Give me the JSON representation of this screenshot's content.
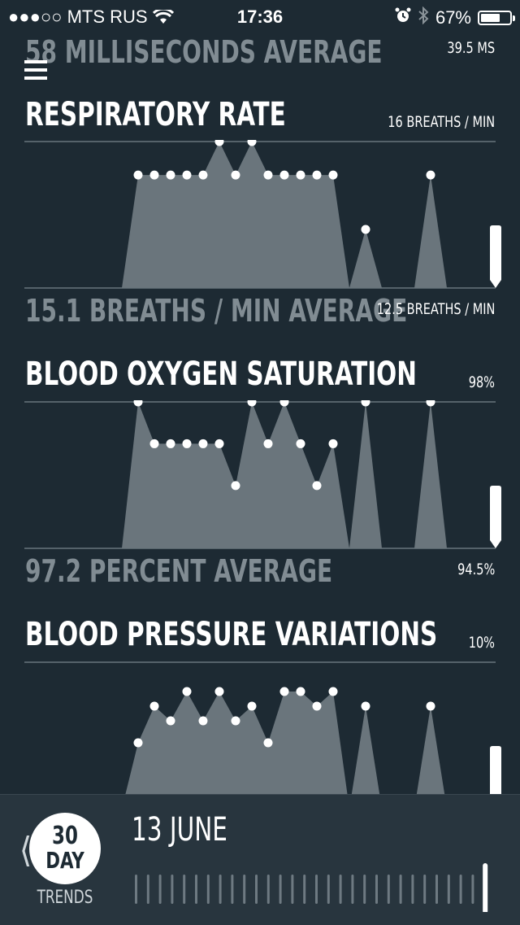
{
  "status_bar": {
    "signal": "●●●○○",
    "carrier": "MTS RUS",
    "time": "17:36",
    "battery": "67%",
    "battery_level": 0.67,
    "icons": [
      "wifi-icon",
      "alarm-icon",
      "bluetooth-icon",
      "battery-icon"
    ]
  },
  "colors": {
    "background": "#1d2a33",
    "area_fill": "#6a757c",
    "faded_text": "#818c93",
    "bottom_bar": "#28353e",
    "accent": "#ffffff"
  },
  "top_partial": {
    "average_label": "58 MILLISECONDS AVERAGE",
    "low_value": "39.5 MS"
  },
  "sections": [
    {
      "title": "RESPIRATORY RATE",
      "high_value": "16 BREATHS / MIN",
      "average_label": "15.1 BREATHS / MIN AVERAGE",
      "low_value": "12.5 BREATHS / MIN",
      "chart_data": {
        "type": "area",
        "series_points": [
          {
            "x": 1,
            "y": 15.2
          },
          {
            "x": 2,
            "y": 15.2
          },
          {
            "x": 3,
            "y": 15.2
          },
          {
            "x": 4,
            "y": 15.2
          },
          {
            "x": 5,
            "y": 15.2
          },
          {
            "x": 6,
            "y": 16.0
          },
          {
            "x": 7,
            "y": 15.2
          },
          {
            "x": 8,
            "y": 16.0
          },
          {
            "x": 9,
            "y": 15.2
          },
          {
            "x": 10,
            "y": 15.2
          },
          {
            "x": 11,
            "y": 15.2
          },
          {
            "x": 12,
            "y": 15.2
          },
          {
            "x": 13,
            "y": 15.2
          },
          {
            "x": 15,
            "y": 13.9
          },
          {
            "x": 19,
            "y": 15.2
          }
        ],
        "today_level": 0.55,
        "ylim": [
          12.5,
          16
        ]
      }
    },
    {
      "title": "BLOOD OXYGEN SATURATION",
      "high_value": "98%",
      "average_label": "97.2 PERCENT AVERAGE",
      "low_value": "94.5%",
      "chart_data": {
        "type": "area",
        "series_points": [
          {
            "x": 1,
            "y": 98.0
          },
          {
            "x": 2,
            "y": 97.0
          },
          {
            "x": 3,
            "y": 97.0
          },
          {
            "x": 4,
            "y": 97.0
          },
          {
            "x": 5,
            "y": 97.0
          },
          {
            "x": 6,
            "y": 97.0
          },
          {
            "x": 7,
            "y": 96.0
          },
          {
            "x": 8,
            "y": 98.0
          },
          {
            "x": 9,
            "y": 97.0
          },
          {
            "x": 10,
            "y": 98.0
          },
          {
            "x": 11,
            "y": 97.0
          },
          {
            "x": 12,
            "y": 96.0
          },
          {
            "x": 13,
            "y": 97.0
          },
          {
            "x": 15,
            "y": 98.0
          },
          {
            "x": 19,
            "y": 98.0
          }
        ],
        "today_level": 0.55,
        "ylim": [
          94.5,
          98
        ]
      }
    },
    {
      "title": "BLOOD PRESSURE VARIATIONS",
      "high_value": "10%",
      "chart_data": {
        "type": "area",
        "series_points": [
          {
            "x": 1,
            "y": 4.5
          },
          {
            "x": 2,
            "y": 7.0
          },
          {
            "x": 3,
            "y": 6.0
          },
          {
            "x": 4,
            "y": 8.0
          },
          {
            "x": 5,
            "y": 6.0
          },
          {
            "x": 6,
            "y": 8.0
          },
          {
            "x": 7,
            "y": 6.0
          },
          {
            "x": 8,
            "y": 7.0
          },
          {
            "x": 9,
            "y": 4.5
          },
          {
            "x": 10,
            "y": 8.0
          },
          {
            "x": 11,
            "y": 8.0
          },
          {
            "x": 12,
            "y": 7.0
          },
          {
            "x": 13,
            "y": 8.0
          },
          {
            "x": 15,
            "y": 7.0
          },
          {
            "x": 19,
            "y": 7.0
          }
        ],
        "today_level": 0.55,
        "ylim": [
          0,
          10
        ]
      }
    }
  ],
  "bottom_bar": {
    "back_label": "❬",
    "period_number": "30",
    "period_unit": "DAY",
    "period_caption": "TRENDS",
    "date": "13 JUNE",
    "timeline_ticks": 30,
    "selected_tick": 30
  }
}
